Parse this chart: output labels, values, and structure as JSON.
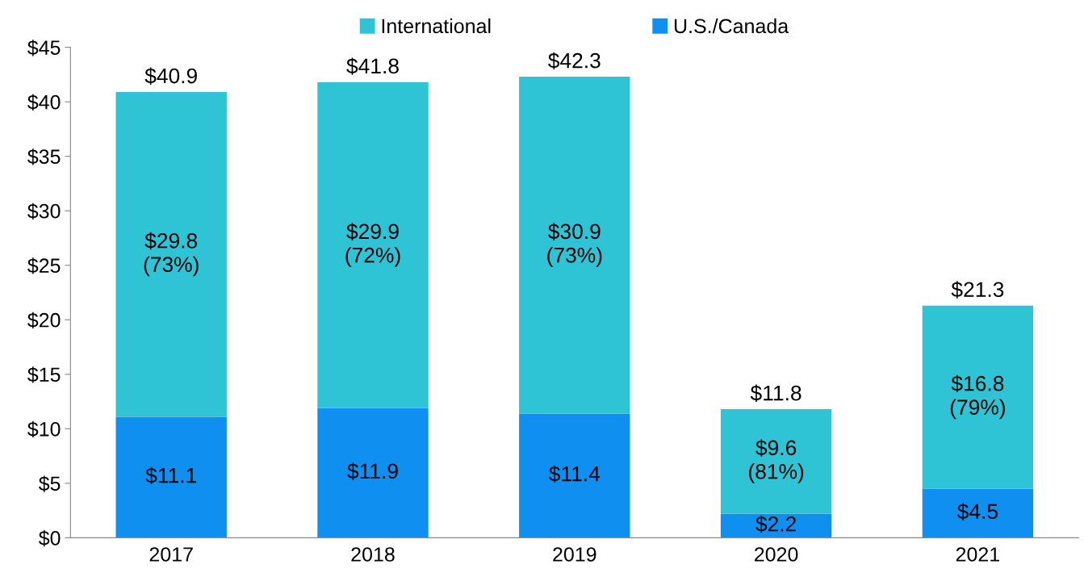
{
  "chart_data": {
    "type": "bar",
    "stacked": true,
    "categories": [
      "2017",
      "2018",
      "2019",
      "2020",
      "2021"
    ],
    "series": [
      {
        "name": "U.S./Canada",
        "color": "#0f8ff0",
        "values": [
          11.1,
          11.9,
          11.4,
          2.2,
          4.5
        ],
        "value_labels": [
          "$11.1",
          "$11.9",
          "$11.4",
          "$2.2",
          "$4.5"
        ]
      },
      {
        "name": "International",
        "color": "#2ec4d6",
        "values": [
          29.8,
          29.9,
          30.9,
          9.6,
          16.8
        ],
        "value_labels": [
          "$29.8\n(73%)",
          "$29.9\n(72%)",
          "$30.9\n(73%)",
          "$9.6\n(81%)",
          "$16.8\n(79%)"
        ]
      }
    ],
    "totals": [
      "$40.9",
      "$41.8",
      "$42.3",
      "$11.8",
      "$21.3"
    ],
    "ylim": [
      0,
      45
    ],
    "yticks": [
      {
        "value": 0,
        "label": "$0"
      },
      {
        "value": 5,
        "label": "$5"
      },
      {
        "value": 10,
        "label": "$10"
      },
      {
        "value": 15,
        "label": "$15"
      },
      {
        "value": 20,
        "label": "$20"
      },
      {
        "value": 25,
        "label": "$25"
      },
      {
        "value": 30,
        "label": "$30"
      },
      {
        "value": 35,
        "label": "$35"
      },
      {
        "value": 40,
        "label": "$40"
      },
      {
        "value": 45,
        "label": "$45"
      }
    ],
    "grid": false,
    "legend": "top"
  }
}
